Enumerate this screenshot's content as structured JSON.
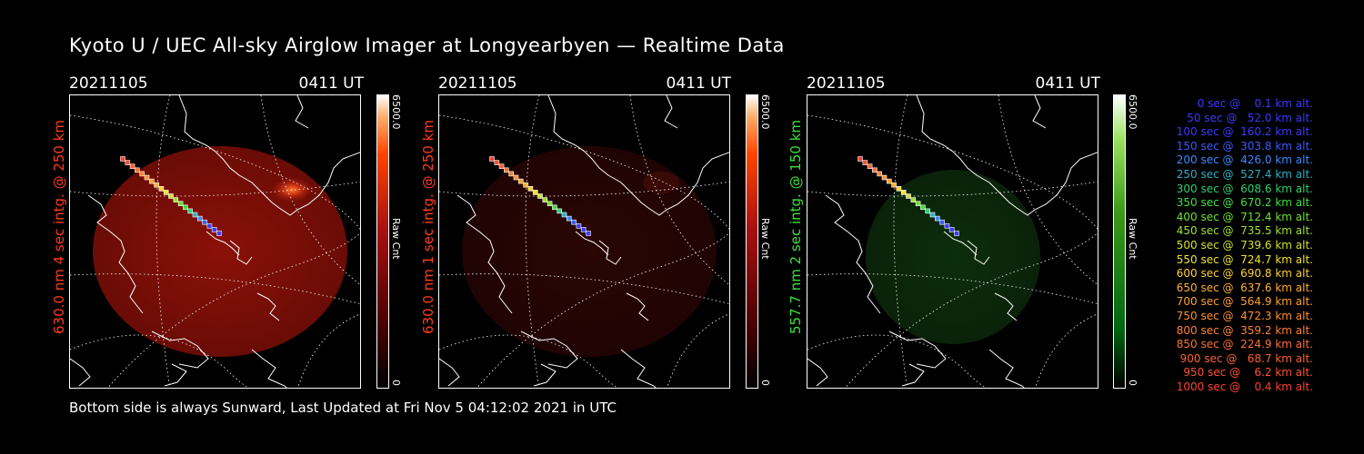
{
  "title": "Kyoto U / UEC All-sky Airglow Imager at Longyearbyen — Realtime Data",
  "footer": "Bottom side is always Sunward, Last Updated at Fri Nov  5 04:12:02 2021 in UTC",
  "colors": {
    "red": "#ff3b1f",
    "green": "#3ee03e",
    "white": "#ffffff"
  },
  "panels": [
    {
      "date": "20211105",
      "time": "0411 UT",
      "label": "630.0 nm 4 sec intg. @ 250 km",
      "label_color": "#ff3b1f",
      "colorbar_max": "6500.0",
      "colorbar_unit": "Raw Cnt",
      "colorbar_min": "0",
      "colorbar_color": "#ff5a1a",
      "glow": "bright-red"
    },
    {
      "date": "20211105",
      "time": "0411 UT",
      "label": "630.0 nm 1 sec intg. @ 250 km",
      "label_color": "#ff3b1f",
      "colorbar_max": "6500.0",
      "colorbar_unit": "Raw Cnt",
      "colorbar_min": "0",
      "colorbar_color": "#ff5a1a",
      "glow": "dim-red"
    },
    {
      "date": "20211105",
      "time": "0411 UT",
      "label": "557.7 nm 2 sec intg. @ 150 km",
      "label_color": "#3ee03e",
      "colorbar_max": "6500.0",
      "colorbar_unit": "Raw Cnt",
      "colorbar_min": "0",
      "colorbar_color": "#3ea01e",
      "glow": "dim-green"
    }
  ],
  "legend": [
    {
      "text": "0 sec @    0.1 km alt.",
      "color": "#3a3aff"
    },
    {
      "text": "50 sec @   52.0 km alt.",
      "color": "#3a3aff"
    },
    {
      "text": "100 sec @  160.2 km alt.",
      "color": "#3a3aff"
    },
    {
      "text": "150 sec @  303.8 km alt.",
      "color": "#3a5aff"
    },
    {
      "text": "200 sec @  426.0 km alt.",
      "color": "#3a8aff"
    },
    {
      "text": "250 sec @  527.4 km alt.",
      "color": "#2ab0c8"
    },
    {
      "text": "300 sec @  608.6 km alt.",
      "color": "#30d070"
    },
    {
      "text": "350 sec @  670.2 km alt.",
      "color": "#3fe040"
    },
    {
      "text": "400 sec @  712.4 km alt.",
      "color": "#70e030"
    },
    {
      "text": "450 sec @  735.5 km alt.",
      "color": "#a0e030"
    },
    {
      "text": "500 sec @  739.6 km alt.",
      "color": "#d0e030"
    },
    {
      "text": "550 sec @  724.7 km alt.",
      "color": "#f0e030"
    },
    {
      "text": "600 sec @  690.8 km alt.",
      "color": "#ffd030"
    },
    {
      "text": "650 sec @  637.6 km alt.",
      "color": "#ffb030"
    },
    {
      "text": "700 sec @  564.9 km alt.",
      "color": "#ffa030"
    },
    {
      "text": "750 sec @  472.3 km alt.",
      "color": "#ff9030"
    },
    {
      "text": "800 sec @  359.2 km alt.",
      "color": "#ff8030"
    },
    {
      "text": "850 sec @  224.9 km alt.",
      "color": "#ff7030"
    },
    {
      "text": "900 sec @   68.7 km alt.",
      "color": "#ff6030"
    },
    {
      "text": "950 sec @    6.2 km alt.",
      "color": "#ff5030"
    },
    {
      "text": "1000 sec @    0.4 km alt.",
      "color": "#ff4030"
    }
  ]
}
